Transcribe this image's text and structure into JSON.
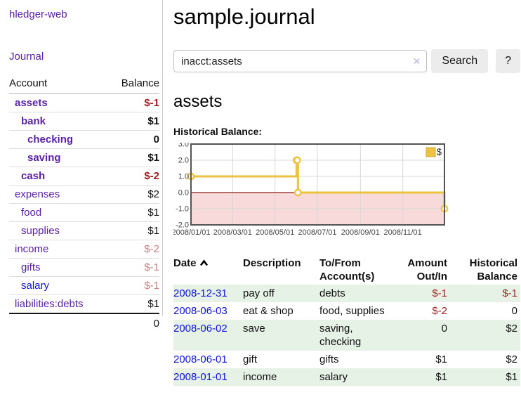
{
  "colors": {
    "accent_purple": "#5b21a5",
    "link_blue": "#1111dd",
    "neg_strong": "#9d1f1f",
    "neg_soft": "#c47e7e",
    "row_green": "#e5f2e5",
    "series_gold": "#edc240",
    "neg_region_pink": "#f9dada",
    "zero_line": "#8b1a1a",
    "grid": "#d8d8d8",
    "chart_border": "#545454"
  },
  "sidebar": {
    "app_title": "hledger-web",
    "journal_link": "Journal",
    "accounts": {
      "col_account": "Account",
      "col_balance": "Balance",
      "rows": [
        {
          "account": "assets",
          "depth": 1,
          "bold": true,
          "balance": "$-1",
          "balance_class": "neg-strong"
        },
        {
          "account": "bank",
          "depth": 2,
          "bold": true,
          "balance": "$1",
          "balance_class": "pos"
        },
        {
          "account": "checking",
          "depth": 3,
          "bold": true,
          "balance": "0",
          "balance_class": "pos"
        },
        {
          "account": "saving",
          "depth": 3,
          "bold": true,
          "balance": "$1",
          "balance_class": "pos"
        },
        {
          "account": "cash",
          "depth": 2,
          "bold": true,
          "balance": "$-2",
          "balance_class": "neg-strong"
        },
        {
          "account": "expenses",
          "depth": 1,
          "bold": false,
          "balance": "$2",
          "balance_class": "pos"
        },
        {
          "account": "food",
          "depth": 2,
          "bold": false,
          "balance": "$1",
          "balance_class": "pos"
        },
        {
          "account": "supplies",
          "depth": 2,
          "bold": false,
          "balance": "$1",
          "balance_class": "pos"
        },
        {
          "account": "income",
          "depth": 1,
          "bold": false,
          "balance": "$-2",
          "balance_class": "neg-soft"
        },
        {
          "account": "gifts",
          "depth": 2,
          "bold": false,
          "balance": "$-1",
          "balance_class": "neg-soft"
        },
        {
          "account": "salary",
          "depth": 2,
          "bold": false,
          "link_blue": true,
          "balance": "$-1",
          "balance_class": "neg-soft"
        },
        {
          "account": "liabilities:debts",
          "depth": 1,
          "bold": false,
          "balance": "$1",
          "balance_class": "pos"
        }
      ],
      "total": "0"
    }
  },
  "main": {
    "title": "sample.journal",
    "search": {
      "value": "inacct:assets",
      "clear_icon": "×",
      "search_button": "Search",
      "help_button": "?"
    },
    "account_heading": "assets",
    "section_label": "Historical Balance:",
    "register": {
      "headers": {
        "date": "Date",
        "description": "Description",
        "accounts": "To/From Account(s)",
        "amount": "Amount Out/In",
        "balance": "Historical Balance"
      },
      "rows": [
        {
          "date": "2008-12-31",
          "description": "pay off",
          "accounts": "debts",
          "amount": "$-1",
          "amount_neg": true,
          "balance": "$-1",
          "balance_neg": true,
          "shaded": true
        },
        {
          "date": "2008-06-03",
          "description": "eat & shop",
          "accounts": "food, supplies",
          "amount": "$-2",
          "amount_neg": true,
          "balance": "0",
          "balance_neg": false,
          "shaded": false
        },
        {
          "date": "2008-06-02",
          "description": "save",
          "accounts": "saving, checking",
          "amount": "0",
          "amount_neg": false,
          "balance": "$2",
          "balance_neg": false,
          "shaded": true
        },
        {
          "date": "2008-06-01",
          "description": "gift",
          "accounts": "gifts",
          "amount": "$1",
          "amount_neg": false,
          "balance": "$2",
          "balance_neg": false,
          "shaded": false
        },
        {
          "date": "2008-01-01",
          "description": "income",
          "accounts": "salary",
          "amount": "$1",
          "amount_neg": false,
          "balance": "$1",
          "balance_neg": false,
          "shaded": true
        }
      ]
    }
  },
  "chart_data": {
    "type": "line",
    "style": "step",
    "title": "Historical Balance",
    "legend": {
      "position": "top-right",
      "label": "$"
    },
    "xlim": [
      "2008-01-01",
      "2008-12-31"
    ],
    "ylim": [
      -2,
      3
    ],
    "y_ticks": [
      3.0,
      2.0,
      1.0,
      0.0,
      -1.0,
      -2.0
    ],
    "x_ticks": [
      "2008/01/01",
      "2008/03/01",
      "2008/05/01",
      "2008/07/01",
      "2008/09/01",
      "2008/11/01"
    ],
    "grid": true,
    "series": [
      {
        "name": "$",
        "color": "#edc240",
        "points": [
          [
            "2008-01-01",
            1
          ],
          [
            "2008-06-01",
            2
          ],
          [
            "2008-06-02",
            2
          ],
          [
            "2008-06-03",
            0
          ],
          [
            "2008-12-31",
            -1
          ]
        ]
      }
    ]
  }
}
